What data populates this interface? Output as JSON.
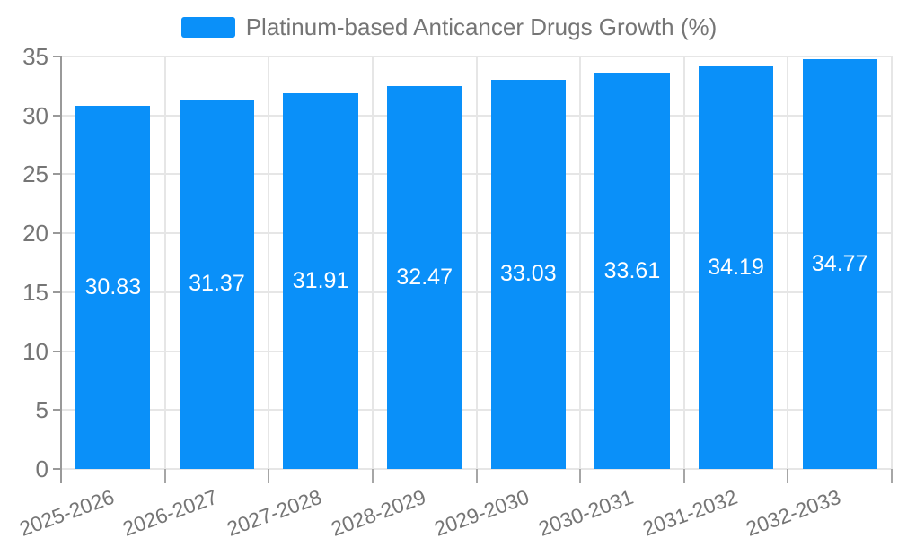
{
  "legend": {
    "label": "Platinum-based Anticancer Drugs Growth (%)"
  },
  "colors": {
    "bar": "#0A90F9",
    "grid": "#E6E6E6",
    "axis_line": "#999999",
    "tick_label": "#757575",
    "value_label": "#FFFFFF",
    "background": "#FFFFFF"
  },
  "y_axis": {
    "tick_labels_top_to_bottom": [
      "35",
      "30",
      "25",
      "20",
      "15",
      "10",
      "5",
      "0"
    ]
  },
  "chart_data": {
    "type": "bar",
    "title": "Platinum-based Anticancer Drugs Growth (%)",
    "legend_position": "top",
    "categories": [
      "2025-2026",
      "2026-2027",
      "2027-2028",
      "2028-2029",
      "2029-2030",
      "2030-2031",
      "2031-2032",
      "2032-2033"
    ],
    "values": [
      30.83,
      31.37,
      31.91,
      32.47,
      33.03,
      33.61,
      34.19,
      34.77
    ],
    "value_labels_position": "inside-center",
    "xlabel": "",
    "ylabel": "",
    "ylim": [
      0,
      35
    ],
    "y_tick_step": 5,
    "grid": true,
    "x_label_rotation_deg": -20,
    "bar_color": "#0A90F9"
  }
}
